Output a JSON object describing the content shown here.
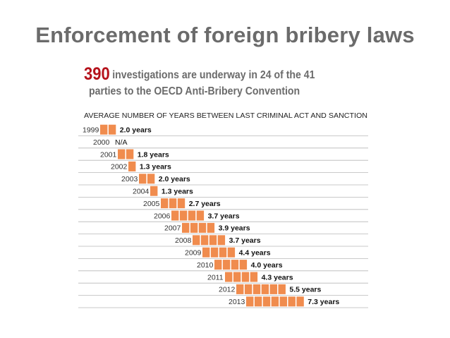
{
  "slide": {
    "title": "Enforcement of foreign bribery laws",
    "highlight_number": "390",
    "subtitle_line1": "investigations are underway in 24 of the 41",
    "subtitle_line2": "parties to the OECD Anti-Bribery Convention",
    "highlight_color": "#b5121b"
  },
  "chart_data": {
    "type": "bar",
    "title": "AVERAGE NUMBER OF YEARS BETWEEN LAST CRIMINAL ACT AND SANCTION",
    "categories": [
      "1999",
      "2000",
      "2001",
      "2002",
      "2003",
      "2004",
      "2005",
      "2006",
      "2007",
      "2008",
      "2009",
      "2010",
      "2011",
      "2012",
      "2013"
    ],
    "values": [
      2.0,
      null,
      1.8,
      1.3,
      2.0,
      1.3,
      2.7,
      3.7,
      3.9,
      3.7,
      4.4,
      4.0,
      4.3,
      5.5,
      7.3
    ],
    "value_labels": [
      "2.0 years",
      "N/A",
      "1.8 years",
      "1.3 years",
      "2.0 years",
      "1.3 years",
      "2.7 years",
      "3.7 years",
      "3.9 years",
      "3.7 years",
      "4.4 years",
      "4.0 years",
      "4.3 years",
      "5.5 years",
      "7.3 years"
    ],
    "bar_color": "#f08c4e",
    "unit": "years",
    "layout_note": "staggered bars; each year's bar starts where the year label ends"
  }
}
